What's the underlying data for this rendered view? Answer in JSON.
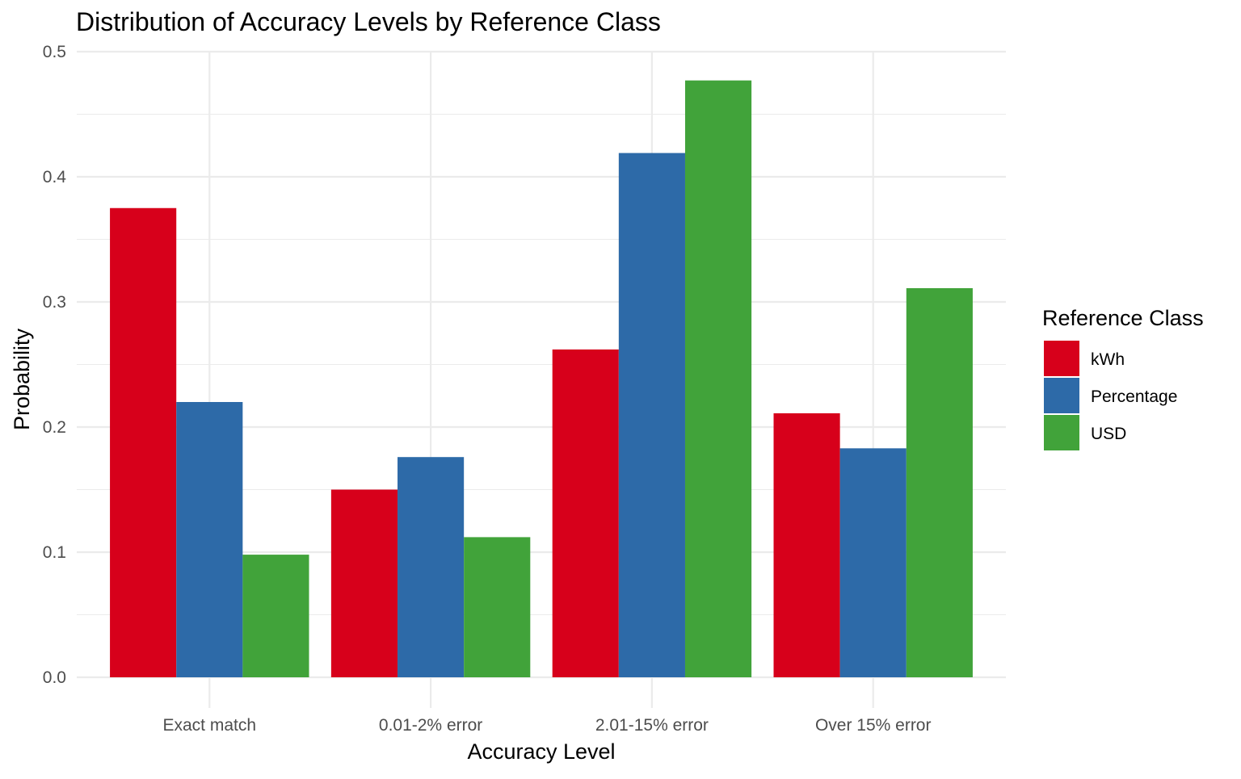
{
  "chart_data": {
    "type": "bar",
    "title": "Distribution of Accuracy Levels by Reference Class",
    "xlabel": "Accuracy Level",
    "ylabel": "Probability",
    "categories": [
      "Exact match",
      "0.01-2% error",
      "2.01-15% error",
      "Over 15% error"
    ],
    "series": [
      {
        "name": "kWh",
        "color": "#d7001b",
        "values": [
          0.375,
          0.15,
          0.262,
          0.211
        ]
      },
      {
        "name": "Percentage",
        "color": "#2d6aa8",
        "values": [
          0.22,
          0.176,
          0.419,
          0.183
        ]
      },
      {
        "name": "USD",
        "color": "#41a33a",
        "values": [
          0.098,
          0.112,
          0.477,
          0.311
        ]
      }
    ],
    "ylim": [
      0,
      0.5
    ],
    "yticks": [
      0.0,
      0.1,
      0.2,
      0.3,
      0.4,
      0.5
    ],
    "ytick_labels": [
      "0.0",
      "0.1",
      "0.2",
      "0.3",
      "0.4",
      "0.5"
    ],
    "grid": true,
    "legend": {
      "title": "Reference Class",
      "placement": "right"
    }
  }
}
